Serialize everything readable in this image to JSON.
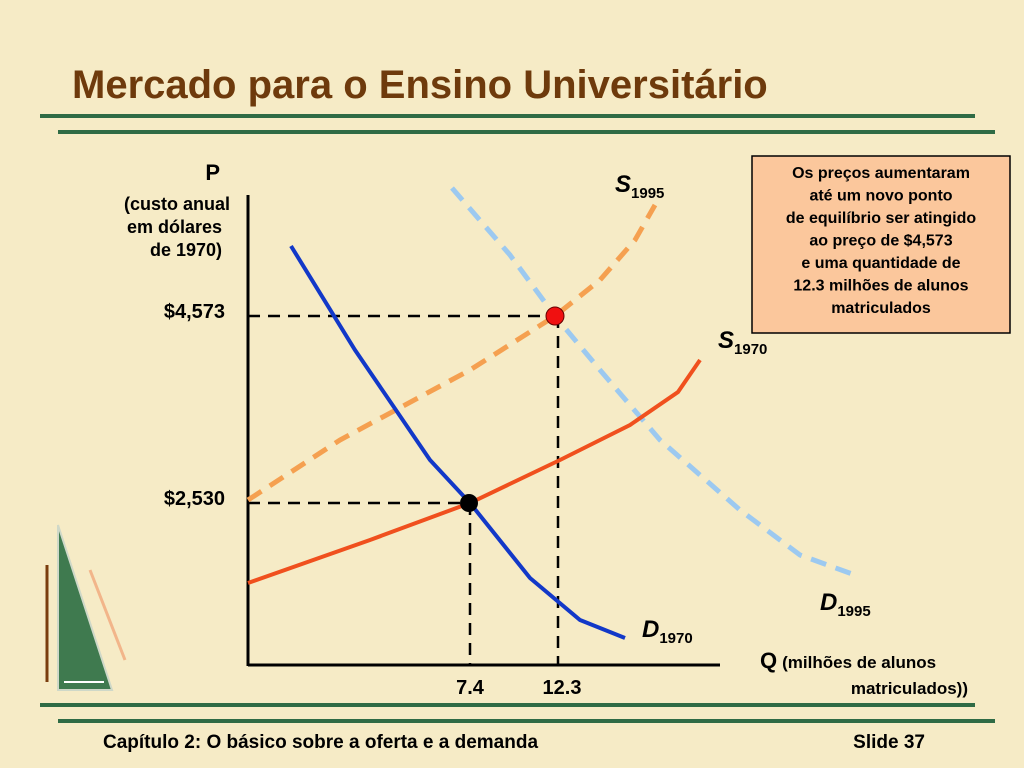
{
  "title": "Mercado para o Ensino Universitário",
  "y_axis": {
    "symbol": "P",
    "lines": [
      "(custo anual",
      "em dólares",
      "de 1970)"
    ]
  },
  "price_labels": [
    "$4,573",
    "$2,530"
  ],
  "quantity_labels": [
    "7.4",
    "12.3"
  ],
  "curves": [
    {
      "letter": "S",
      "sub": "1995"
    },
    {
      "letter": "S",
      "sub": "1970"
    },
    {
      "letter": "D",
      "sub": "1995"
    },
    {
      "letter": "D",
      "sub": "1970"
    }
  ],
  "x_axis": {
    "symbol": "Q",
    "lines": [
      "(milhões de alunos",
      "matriculados))"
    ]
  },
  "note": [
    "Os preços aumentaram",
    "até um novo ponto",
    "de equilíbrio ser atingido",
    "ao preço de $4,573",
    "e uma quantidade de",
    "12.3 milhões de alunos",
    "matriculados"
  ],
  "footer": {
    "chapter": "Capítulo 2: O básico sobre a oferta e a demanda",
    "slide": "Slide 37"
  }
}
